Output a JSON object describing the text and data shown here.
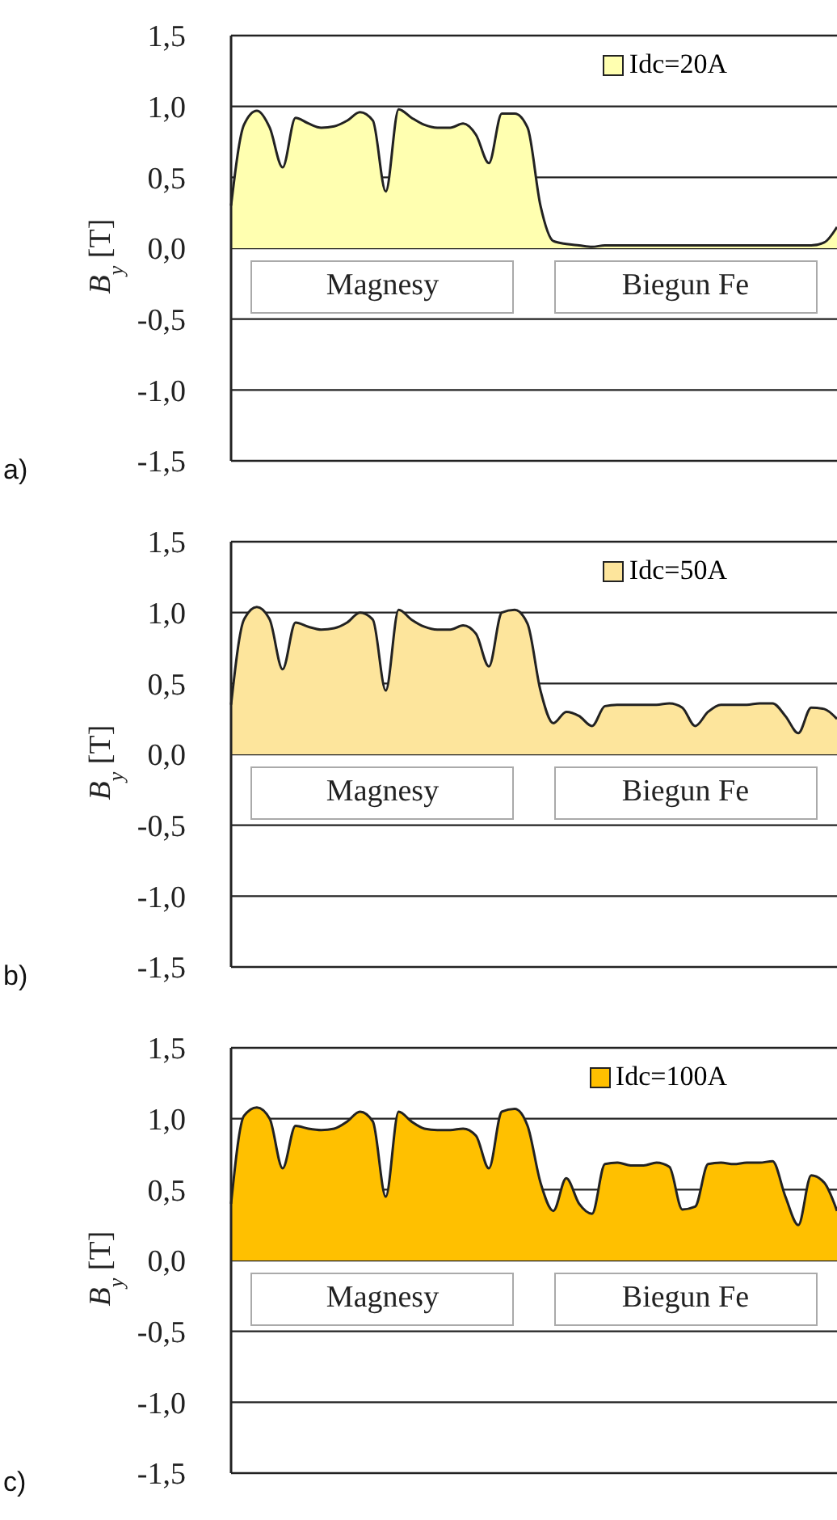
{
  "chart_data": [
    {
      "type": "area",
      "title": "a)",
      "ylabel": "B$_{y}$ [T]",
      "categories": [
        null,
        null,
        null,
        null,
        null,
        null,
        null,
        null,
        null,
        null,
        null,
        null,
        null,
        null,
        null,
        null,
        null,
        null,
        null,
        null,
        null,
        null,
        null,
        null,
        null,
        null,
        null,
        null,
        null,
        null,
        null,
        null,
        null,
        null,
        null,
        null,
        null,
        null,
        null,
        null,
        null,
        null,
        null,
        null,
        null,
        null,
        null,
        null
      ],
      "ylim": [
        -1.5,
        1.5
      ],
      "yticks": [
        {
          "value": -1.5,
          "label": "-1,5"
        },
        {
          "value": -1,
          "label": "-1,0"
        },
        {
          "value": -0.5,
          "label": "-0,5"
        },
        {
          "value": 0,
          "label": "0,0"
        },
        {
          "value": 0.5,
          "label": "0,5"
        },
        {
          "value": 1,
          "label": "1,0"
        },
        {
          "value": 1.5,
          "label": "1,5"
        }
      ],
      "grid": "y",
      "legend": "top right",
      "tick_labels": "y",
      "annotations": [
        "Magnesy",
        "Biegun Fe"
      ],
      "series": [
        {
          "name": "Idc=20A",
          "color": "#ffffb0",
          "values": [
            0.3,
            0.87,
            0.97,
            0.85,
            0.57,
            0.92,
            0.88,
            0.85,
            0.86,
            0.9,
            0.96,
            0.9,
            0.4,
            0.98,
            0.92,
            0.87,
            0.85,
            0.85,
            0.88,
            0.8,
            0.6,
            0.95,
            0.95,
            0.85,
            0.3,
            0.05,
            0.03,
            0.02,
            0.01,
            0.02,
            0.02,
            0.02,
            0.02,
            0.02,
            0.02,
            0.02,
            0.02,
            0.02,
            0.02,
            0.02,
            0.02,
            0.02,
            0.02,
            0.02,
            0.02,
            0.02,
            0.04,
            0.15
          ]
        }
      ]
    },
    {
      "type": "area",
      "title": "b)",
      "ylabel": "B$_{y}$ [T]",
      "categories": [
        null,
        null,
        null,
        null,
        null,
        null,
        null,
        null,
        null,
        null,
        null,
        null,
        null,
        null,
        null,
        null,
        null,
        null,
        null,
        null,
        null,
        null,
        null,
        null,
        null,
        null,
        null,
        null,
        null,
        null,
        null,
        null,
        null,
        null,
        null,
        null,
        null,
        null,
        null,
        null,
        null,
        null,
        null,
        null,
        null,
        null,
        null,
        null
      ],
      "ylim": [
        -1.5,
        1.5
      ],
      "yticks": [
        {
          "value": -1.5,
          "label": "-1,5"
        },
        {
          "value": -1,
          "label": "-1,0"
        },
        {
          "value": -0.5,
          "label": "-0,5"
        },
        {
          "value": 0,
          "label": "0,0"
        },
        {
          "value": 0.5,
          "label": "0,5"
        },
        {
          "value": 1,
          "label": "1,0"
        },
        {
          "value": 1.5,
          "label": "1,5"
        }
      ],
      "grid": "y",
      "legend": "top right",
      "tick_labels": "y",
      "annotations": [
        "Magnesy",
        "Biegun Fe"
      ],
      "series": [
        {
          "name": "Idc=50A",
          "color": "#fde59c",
          "values": [
            0.35,
            0.95,
            1.04,
            0.95,
            0.6,
            0.93,
            0.9,
            0.88,
            0.89,
            0.93,
            1.0,
            0.95,
            0.45,
            1.02,
            0.95,
            0.9,
            0.88,
            0.88,
            0.91,
            0.85,
            0.62,
            1.0,
            1.02,
            0.92,
            0.45,
            0.22,
            0.3,
            0.27,
            0.2,
            0.34,
            0.35,
            0.35,
            0.35,
            0.35,
            0.36,
            0.33,
            0.2,
            0.3,
            0.35,
            0.35,
            0.35,
            0.36,
            0.36,
            0.27,
            0.15,
            0.33,
            0.32,
            0.25
          ]
        }
      ]
    },
    {
      "type": "area",
      "title": "c)",
      "ylabel": "B$_{y}$ [T]",
      "categories": [
        null,
        null,
        null,
        null,
        null,
        null,
        null,
        null,
        null,
        null,
        null,
        null,
        null,
        null,
        null,
        null,
        null,
        null,
        null,
        null,
        null,
        null,
        null,
        null,
        null,
        null,
        null,
        null,
        null,
        null,
        null,
        null,
        null,
        null,
        null,
        null,
        null,
        null,
        null,
        null,
        null,
        null,
        null,
        null,
        null,
        null,
        null,
        null
      ],
      "ylim": [
        -1.5,
        1.5
      ],
      "yticks": [
        {
          "value": -1.5,
          "label": "-1,5"
        },
        {
          "value": -1,
          "label": "-1,0"
        },
        {
          "value": -0.5,
          "label": "-0,5"
        },
        {
          "value": 0,
          "label": "0,0"
        },
        {
          "value": 0.5,
          "label": "0,5"
        },
        {
          "value": 1,
          "label": "1,0"
        },
        {
          "value": 1.5,
          "label": "1,5"
        }
      ],
      "grid": "y",
      "legend": "top right",
      "tick_labels": "y",
      "annotations": [
        "Magnesy",
        "Biegun Fe"
      ],
      "series": [
        {
          "name": "Idc=100A",
          "color": "#ffc000",
          "values": [
            0.4,
            1.02,
            1.08,
            1.0,
            0.65,
            0.95,
            0.93,
            0.92,
            0.93,
            0.98,
            1.05,
            0.98,
            0.45,
            1.05,
            0.98,
            0.93,
            0.92,
            0.92,
            0.93,
            0.88,
            0.65,
            1.05,
            1.07,
            0.95,
            0.55,
            0.35,
            0.58,
            0.4,
            0.33,
            0.68,
            0.69,
            0.67,
            0.67,
            0.69,
            0.66,
            0.36,
            0.38,
            0.68,
            0.69,
            0.68,
            0.69,
            0.69,
            0.7,
            0.45,
            0.25,
            0.6,
            0.55,
            0.35
          ]
        }
      ]
    }
  ]
}
